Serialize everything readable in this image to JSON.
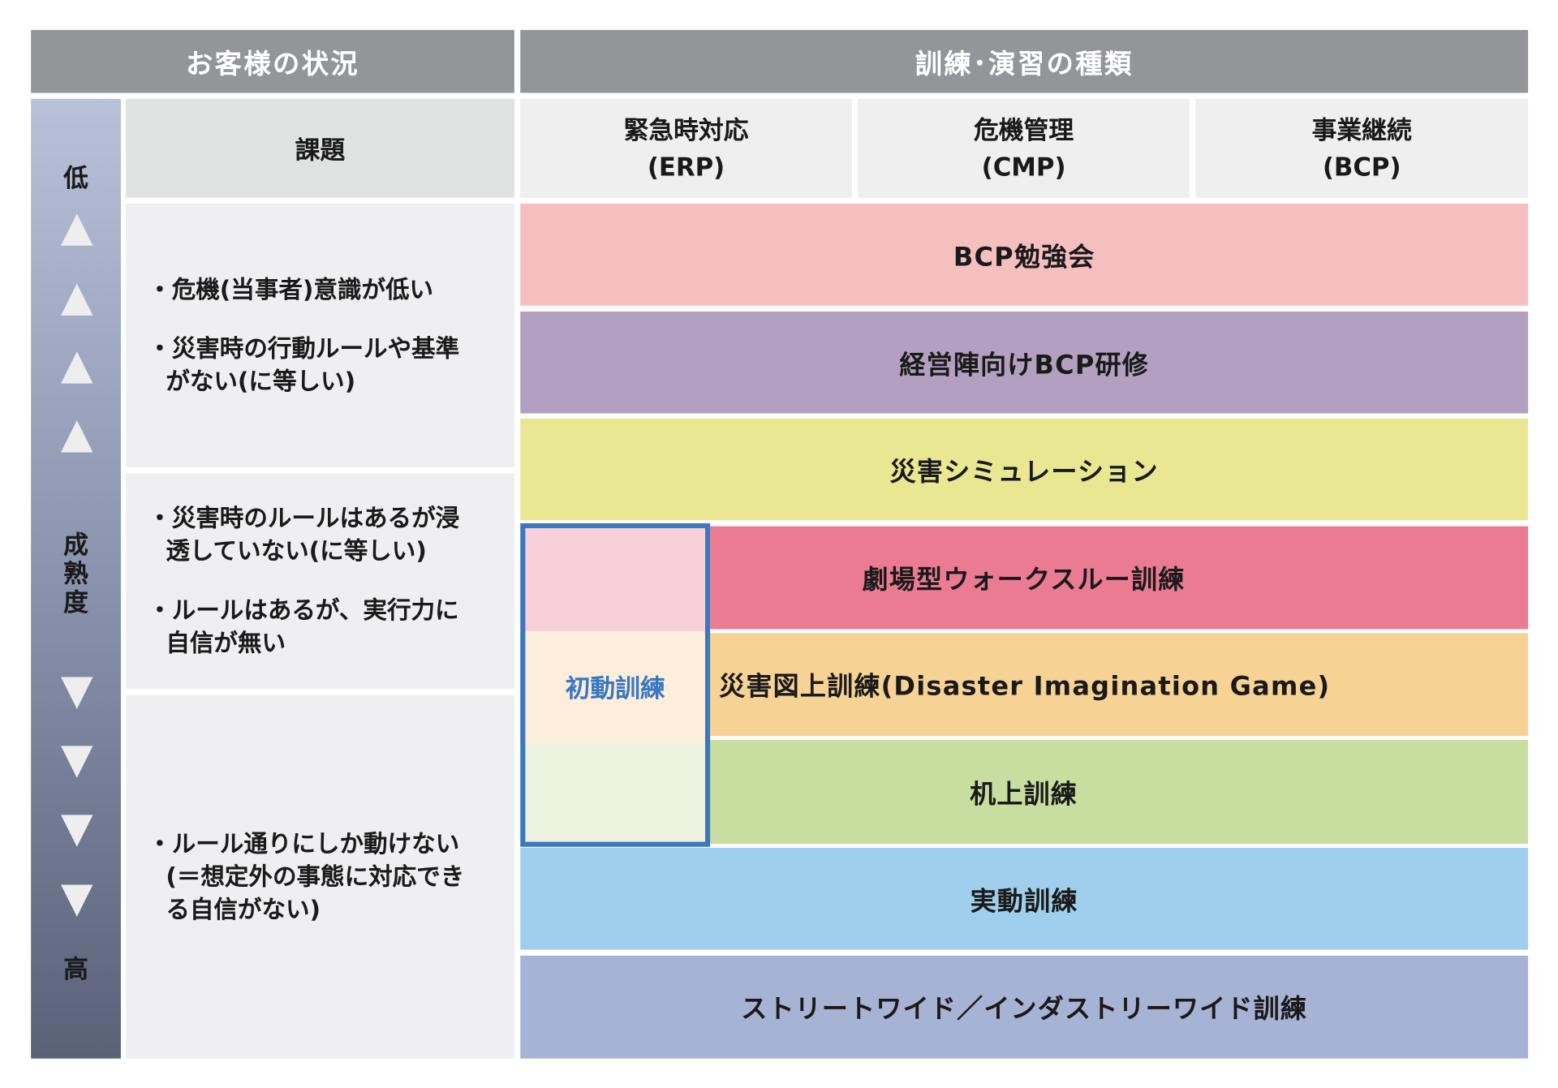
{
  "header": {
    "left": "お客様の状況",
    "right": "訓練･演習の種類"
  },
  "maturity": {
    "low": "低",
    "label": [
      "成",
      "熟",
      "度"
    ],
    "high": "高"
  },
  "issues_header": "課題",
  "columns": [
    {
      "name": "緊急時対応",
      "abbr": "(ERP)"
    },
    {
      "name": "危機管理",
      "abbr": "(CMP)"
    },
    {
      "name": "事業継続",
      "abbr": "(BCP)"
    }
  ],
  "issues": [
    [
      "・危機(当事者)意識が低い",
      "・災害時の行動ルールや基準がない(に等しい)"
    ],
    [
      "・災害時のルールはあるが浸透していない(に等しい)",
      "・ルールはあるが、実行力に自信が無い"
    ],
    [
      "・ルール通りにしか動けない(＝想定外の事態に対応できる自信がない)"
    ]
  ],
  "trainings": [
    {
      "label": "BCP勉強会",
      "color": "#f5bfc0"
    },
    {
      "label": "経営陣向けBCP研修",
      "color": "#b3a0c0"
    },
    {
      "label": "災害シミュレーション",
      "color": "#e9e792"
    },
    {
      "label": "劇場型ウォークスルー訓練",
      "color": "#eb7b93"
    },
    {
      "label": "災害図上訓練(Disaster Imagination Game)",
      "color": "#f6d295"
    },
    {
      "label": "机上訓練",
      "color": "#c8dea1"
    },
    {
      "label": "実動訓練",
      "color": "#9fcfec"
    },
    {
      "label": "ストリートワイド／インダストリーワイド訓練",
      "color": "#a7b3d4"
    }
  ],
  "initial_training": {
    "label": "初動訓練",
    "color": "#3a78c2"
  }
}
